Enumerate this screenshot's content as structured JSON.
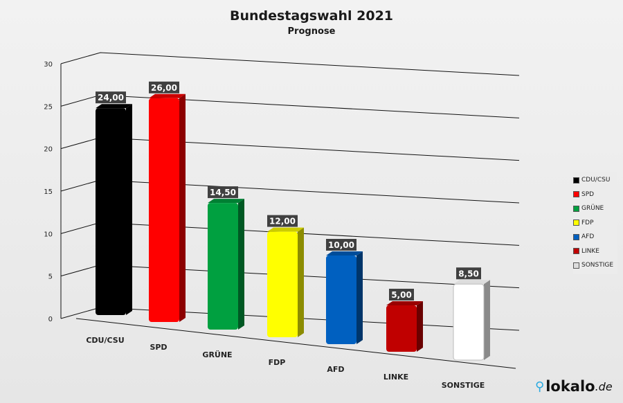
{
  "chart_data": {
    "type": "bar",
    "title": "Bundestagswahl 2021",
    "subtitle": "Prognose",
    "categories": [
      "CDU/CSU",
      "SPD",
      "GRÜNE",
      "FDP",
      "AFD",
      "LINKE",
      "SONSTIGE"
    ],
    "values": [
      24,
      26,
      14.5,
      12,
      10,
      5,
      8.5
    ],
    "data_labels": [
      "24,00",
      "26,00",
      "14,50",
      "12,00",
      "10,00",
      "5,00",
      "8,50"
    ],
    "colors": [
      "#000000",
      "#ff0000",
      "#00a040",
      "#ffff00",
      "#0060c0",
      "#c00000",
      "#ffffff"
    ],
    "ylim": [
      0,
      30
    ],
    "yticks": [
      "0",
      "5",
      "10",
      "15",
      "20",
      "25",
      "30"
    ],
    "grid": true,
    "legend_position": "right",
    "legend": [
      "CDU/CSU",
      "SPD",
      "GRÜNE",
      "FDP",
      "AFD",
      "LINKE",
      "SONSTIGE"
    ]
  },
  "logo": {
    "pin_icon": "map-pin-icon",
    "name": "lokalo",
    ".de": ".de",
    "domain": ".de"
  }
}
